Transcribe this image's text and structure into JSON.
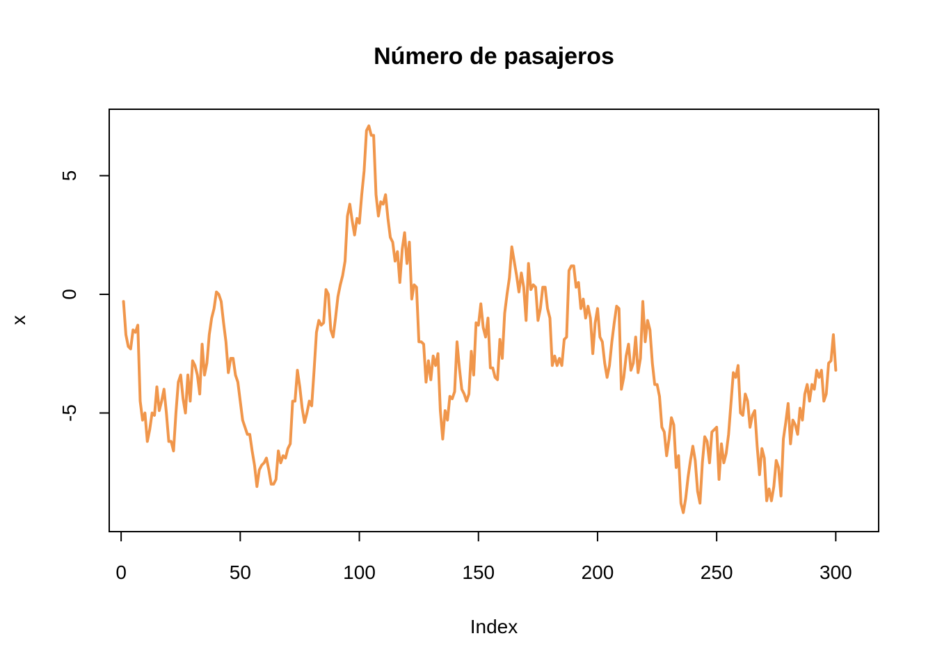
{
  "chart_data": {
    "type": "line",
    "title": "Número de pasajeros",
    "xlabel": "Index",
    "ylabel": "x",
    "xlim": [
      -5,
      318
    ],
    "ylim": [
      -10.0,
      7.8
    ],
    "grid": false,
    "legend": "none",
    "x_ticks": [
      0,
      50,
      100,
      150,
      200,
      250,
      300
    ],
    "x_tick_labels": [
      "0",
      "50",
      "100",
      "150",
      "200",
      "250",
      "300"
    ],
    "y_ticks": [
      -5,
      0,
      5
    ],
    "y_tick_labels": [
      "-5",
      "0",
      "5"
    ],
    "line_color": "#F0964B",
    "series": [
      {
        "x_start": 1,
        "values": [
          -0.3,
          -1.7,
          -2.2,
          -2.3,
          -1.5,
          -1.6,
          -1.3,
          -4.5,
          -5.3,
          -5.0,
          -6.2,
          -5.7,
          -5.0,
          -5.1,
          -3.9,
          -4.9,
          -4.5,
          -4.0,
          -5.0,
          -6.2,
          -6.2,
          -6.6,
          -5.0,
          -3.7,
          -3.4,
          -4.4,
          -5.0,
          -3.4,
          -4.5,
          -2.8,
          -3.0,
          -3.4,
          -4.2,
          -2.1,
          -3.4,
          -2.9,
          -1.7,
          -1.0,
          -0.6,
          0.1,
          0.0,
          -0.3,
          -1.2,
          -2.0,
          -3.3,
          -2.7,
          -2.7,
          -3.4,
          -3.7,
          -4.5,
          -5.3,
          -5.6,
          -5.9,
          -5.9,
          -6.6,
          -7.2,
          -8.1,
          -7.4,
          -7.2,
          -7.1,
          -6.9,
          -7.4,
          -8.0,
          -8.0,
          -7.8,
          -6.6,
          -7.1,
          -6.8,
          -6.9,
          -6.5,
          -6.3,
          -4.5,
          -4.5,
          -3.2,
          -3.9,
          -4.8,
          -5.4,
          -5.0,
          -4.5,
          -4.7,
          -3.2,
          -1.6,
          -1.1,
          -1.3,
          -1.2,
          0.2,
          0.0,
          -1.5,
          -1.8,
          -1.0,
          -0.1,
          0.4,
          0.8,
          1.4,
          3.3,
          3.8,
          3.1,
          2.5,
          3.2,
          3.0,
          4.2,
          5.2,
          6.9,
          7.1,
          6.7,
          6.7,
          4.2,
          3.3,
          3.9,
          3.8,
          4.2,
          3.2,
          2.4,
          2.2,
          1.4,
          1.8,
          0.5,
          1.9,
          2.6,
          1.3,
          2.2,
          -0.2,
          0.4,
          0.3,
          -2.0,
          -2.0,
          -2.1,
          -3.7,
          -2.8,
          -3.6,
          -2.6,
          -3.0,
          -2.5,
          -4.9,
          -6.1,
          -4.9,
          -5.3,
          -4.3,
          -4.4,
          -4.1,
          -2.0,
          -3.1,
          -4.0,
          -4.2,
          -4.5,
          -4.2,
          -2.4,
          -3.4,
          -1.2,
          -1.3,
          -0.4,
          -1.4,
          -1.8,
          -1.0,
          -3.1,
          -3.1,
          -3.5,
          -3.6,
          -1.9,
          -2.7,
          -0.8,
          0.0,
          0.7,
          2.0,
          1.4,
          0.8,
          0.1,
          0.9,
          0.3,
          -1.1,
          1.3,
          0.2,
          0.4,
          0.3,
          -1.1,
          -0.6,
          0.3,
          0.3,
          -0.6,
          -1.0,
          -3.0,
          -2.6,
          -3.0,
          -2.7,
          -3.0,
          -1.9,
          -1.8,
          1.0,
          1.2,
          1.2,
          0.3,
          0.5,
          -0.6,
          -0.2,
          -1.0,
          -0.5,
          -1.0,
          -2.5,
          -1.2,
          -0.6,
          -1.8,
          -2.0,
          -2.9,
          -3.5,
          -3.0,
          -2.0,
          -1.2,
          -0.5,
          -0.6,
          -4.0,
          -3.5,
          -2.6,
          -2.1,
          -3.2,
          -2.9,
          -1.8,
          -3.3,
          -2.7,
          -0.3,
          -2.0,
          -1.1,
          -1.5,
          -2.9,
          -3.8,
          -3.8,
          -4.3,
          -5.6,
          -5.8,
          -6.8,
          -6.1,
          -5.2,
          -5.5,
          -7.3,
          -6.8,
          -8.8,
          -9.2,
          -8.6,
          -7.7,
          -7.0,
          -6.4,
          -7.0,
          -8.3,
          -8.8,
          -7.1,
          -6.0,
          -6.2,
          -7.1,
          -5.8,
          -5.7,
          -5.6,
          -7.8,
          -6.3,
          -7.1,
          -6.7,
          -5.9,
          -4.6,
          -3.3,
          -3.5,
          -3.0,
          -5.0,
          -5.1,
          -4.2,
          -4.5,
          -5.6,
          -5.1,
          -4.9,
          -6.4,
          -7.6,
          -6.5,
          -6.9,
          -8.7,
          -8.2,
          -8.7,
          -8.1,
          -7.0,
          -7.3,
          -8.5,
          -6.1,
          -5.4,
          -4.6,
          -6.3,
          -5.3,
          -5.5,
          -5.9,
          -4.8,
          -5.3,
          -4.2,
          -3.8,
          -4.5,
          -3.8,
          -4.0,
          -3.2,
          -3.5,
          -3.2,
          -4.5,
          -4.2,
          -2.9,
          -2.8,
          -1.7,
          -3.2
        ]
      }
    ]
  }
}
